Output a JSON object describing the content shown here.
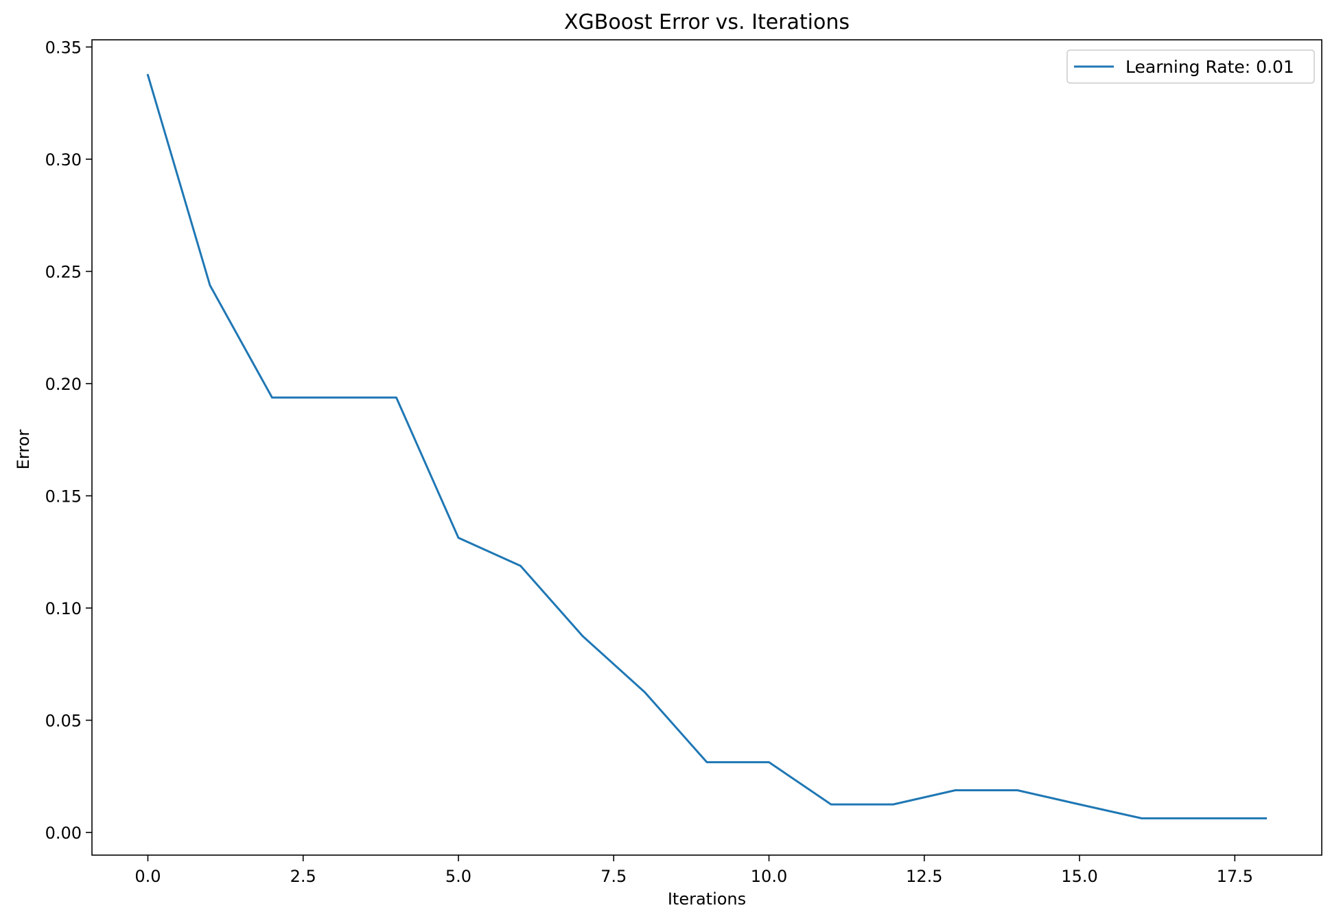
{
  "chart_data": {
    "type": "line",
    "title": "XGBoost Error vs. Iterations",
    "xlabel": "Iterations",
    "ylabel": "Error",
    "xlim": [
      -0.9,
      18.9
    ],
    "ylim": [
      -0.0101,
      0.3532
    ],
    "xticks": [
      0.0,
      2.5,
      5.0,
      7.5,
      10.0,
      12.5,
      15.0,
      17.5
    ],
    "xtick_labels": [
      "0.0",
      "2.5",
      "5.0",
      "7.5",
      "10.0",
      "12.5",
      "15.0",
      "17.5"
    ],
    "yticks": [
      0.0,
      0.05,
      0.1,
      0.15,
      0.2,
      0.25,
      0.3,
      0.35
    ],
    "ytick_labels": [
      "0.00",
      "0.05",
      "0.10",
      "0.15",
      "0.20",
      "0.25",
      "0.30",
      "0.35"
    ],
    "grid": false,
    "legend_position": "top-right",
    "x": [
      0,
      1,
      2,
      3,
      4,
      5,
      6,
      7,
      8,
      9,
      10,
      11,
      12,
      13,
      14,
      15,
      16,
      17,
      18
    ],
    "series": [
      {
        "name": "Learning Rate: 0.01",
        "color": "#1f77b4",
        "values": [
          0.3375,
          0.2438,
          0.1938,
          0.1938,
          0.1938,
          0.1313,
          0.1188,
          0.0875,
          0.0625,
          0.0313,
          0.0313,
          0.0125,
          0.0125,
          0.0188,
          0.0188,
          0.0125,
          0.0063,
          0.0063,
          0.0063
        ]
      }
    ]
  }
}
